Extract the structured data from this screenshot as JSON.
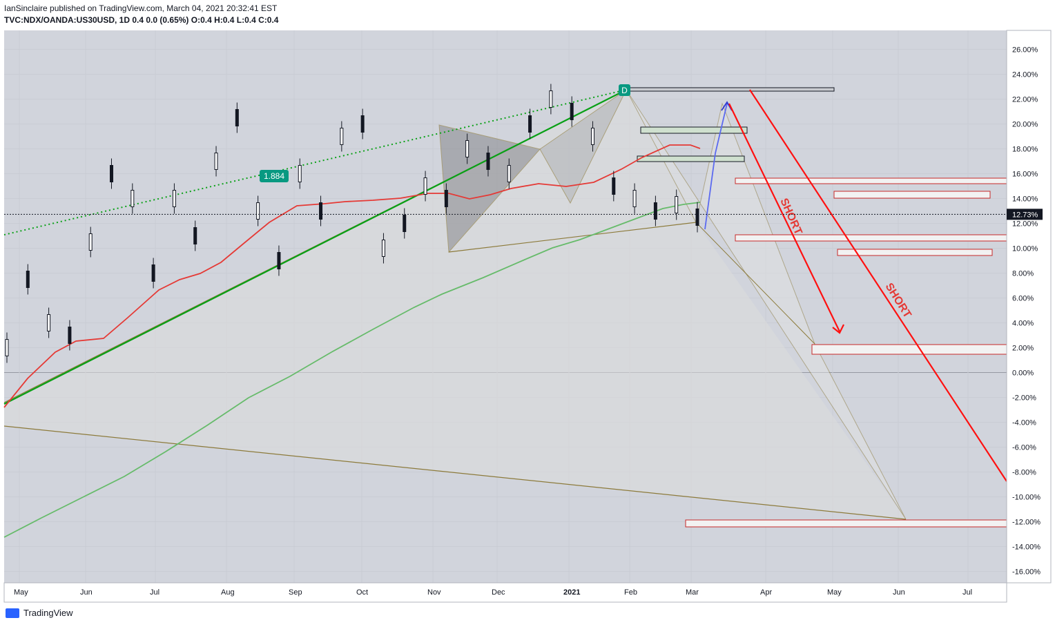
{
  "header": {
    "publish_line": "IanSinclaire published on TradingView.com, March 04, 2021 20:32:41 EST",
    "symbol_line": "TVC:NDX/OANDA:US30USD, 1D 0.4 0.0 (0.65%) O:0.4 H:0.4 L:0.4 C:0.4"
  },
  "footer": {
    "brand": "TradingView"
  },
  "chart_data": {
    "type": "line",
    "title": "",
    "price_scale": {
      "unit": "%",
      "ylim": [
        -17,
        27
      ],
      "ticks": [
        26,
        24,
        22,
        20,
        18,
        16,
        14,
        12,
        10,
        8,
        6,
        4,
        2,
        0,
        -2,
        -4,
        -6,
        -8,
        -10,
        -12,
        -14,
        -16
      ],
      "tick_labels": [
        "26.00%",
        "24.00%",
        "22.00%",
        "20.00%",
        "18.00%",
        "16.00%",
        "14.00%",
        "12.00%",
        "10.00%",
        "8.00%",
        "6.00%",
        "4.00%",
        "2.00%",
        "0.00%",
        "-2.00%",
        "-4.00%",
        "-6.00%",
        "-8.00%",
        "-10.00%",
        "-12.00%",
        "-14.00%",
        "-16.00%"
      ]
    },
    "time_axis": {
      "labels": [
        "May",
        "Jun",
        "Jul",
        "Aug",
        "Sep",
        "Oct",
        "Nov",
        "Dec",
        "2021",
        "Feb",
        "Mar",
        "Apr",
        "May",
        "Jun",
        "Jul"
      ],
      "bold": [
        "2021"
      ]
    },
    "last_value": {
      "value": 12.73,
      "label": "12.73%"
    },
    "annotations": [
      {
        "text": "1.884",
        "kind": "badge",
        "color": "#089981"
      },
      {
        "text": "D",
        "kind": "badge",
        "color": "#089981"
      },
      {
        "text": "SHORT",
        "kind": "rotated-text",
        "color": "#e53935"
      },
      {
        "text": "SHORT",
        "kind": "rotated-text",
        "color": "#e53935"
      }
    ],
    "series": [
      {
        "color": "#e53935",
        "values": [
          -2.8,
          2.5,
          6.5,
          9.5,
          13.5,
          14,
          14.5,
          15.5,
          17.8
        ]
      },
      {
        "color": "#66bb6a",
        "values": [
          -13.2,
          -9,
          -4,
          2,
          8.5,
          12,
          13.6
        ]
      },
      {
        "kind": "candles",
        "color": "#131722",
        "values": [
          2,
          7.5,
          4,
          3,
          10.5,
          16,
          14,
          8,
          14,
          11,
          17,
          20.5,
          13,
          9,
          16,
          13,
          19,
          20,
          10,
          12,
          15,
          14,
          18,
          17,
          16,
          20,
          22,
          21,
          19,
          15,
          14,
          13,
          13.5,
          12.5
        ]
      }
    ],
    "colors": {
      "background": "#d1d4dc",
      "bullish": "#ffffff",
      "bearish": "#131722",
      "trend_green": "#09a016",
      "short_arrow": "#ff1010",
      "zone_fill": "#f2f2f2",
      "zone_border": "#c62828",
      "harmonic": "#8c7a3a"
    }
  }
}
